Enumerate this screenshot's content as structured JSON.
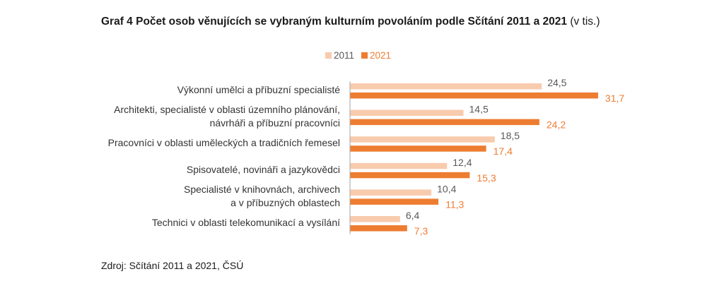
{
  "chart_data": {
    "type": "bar",
    "orientation": "horizontal",
    "title": "Graf 4 Počet osob věnujících se vybraným kulturním povoláním podle Sčítání 2011 a 2021",
    "title_unit": "(v tis.)",
    "categories": [
      "Výkonní umělci a příbuzní specialisté",
      "Architekti, specialisté v oblasti územního plánování,\nnávrháři a příbuzní pracovníci",
      "Pracovníci v oblasti uměleckých a tradičních řemesel",
      "Spisovatelé, novináři a jazykovědci",
      "Specialisté v knihovnách, archivech\na v příbuzných oblastech",
      "Technici v oblasti telekomunikací a vysílání"
    ],
    "series": [
      {
        "name": "2011",
        "color": "#F8CBAD",
        "label_color": "#595959",
        "values": [
          24.5,
          14.5,
          18.5,
          12.4,
          10.4,
          6.4
        ],
        "labels": [
          "24,5",
          "14,5",
          "18,5",
          "12,4",
          "10,4",
          "6,4"
        ]
      },
      {
        "name": "2021",
        "color": "#ED7D31",
        "label_color": "#ED7D31",
        "values": [
          31.7,
          24.2,
          17.4,
          15.3,
          11.3,
          7.3
        ],
        "labels": [
          "31,7",
          "24,2",
          "17,4",
          "15,3",
          "11,3",
          "7,3"
        ]
      }
    ],
    "xlim": [
      0,
      32
    ],
    "grid": false,
    "legend": "top-center"
  },
  "source": "Zdroj: Sčítání 2011 a 2021, ČSÚ"
}
